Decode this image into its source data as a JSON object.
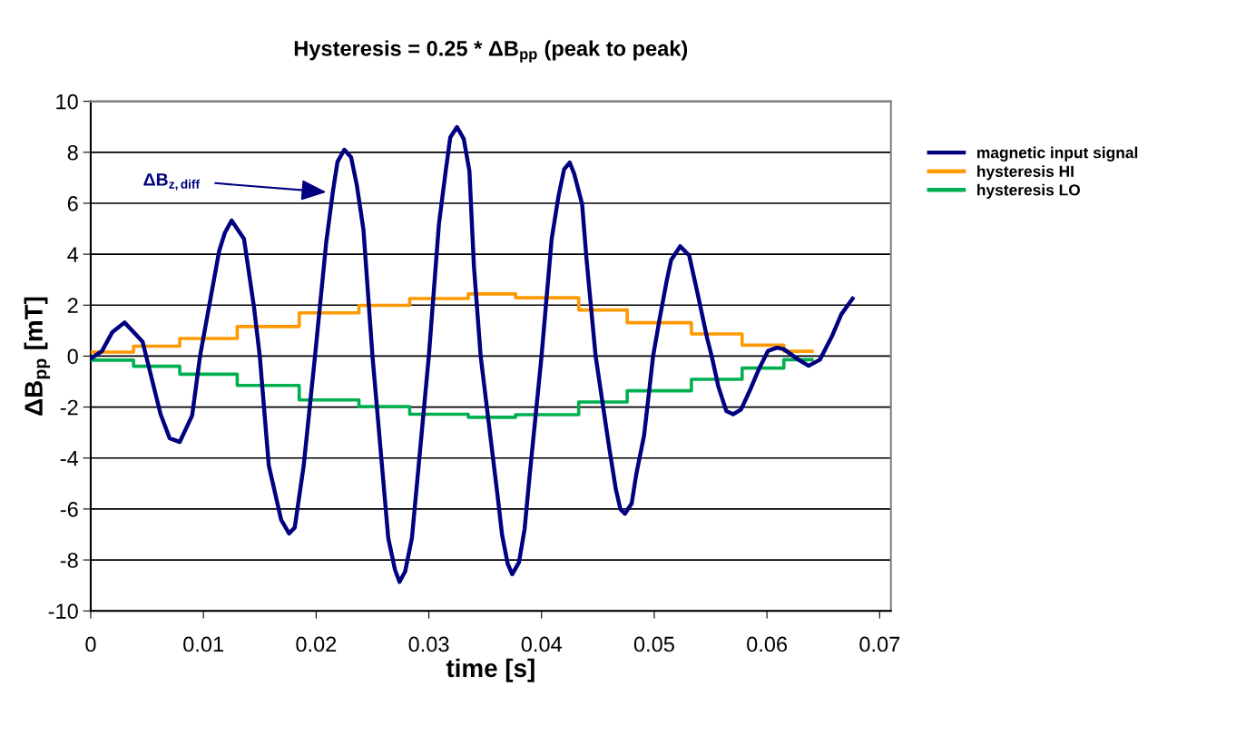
{
  "chart_data": {
    "type": "line",
    "title": "Hysteresis = 0.25 * ΔB$_{pp}$ (peak to peak)",
    "xlabel": "time [s]",
    "ylabel": "ΔB$_{pp}$ [mT]",
    "xlim": [
      0,
      0.071
    ],
    "xticks": [
      0,
      0.01,
      0.02,
      0.03,
      0.04,
      0.05,
      0.06,
      0.07
    ],
    "ylim": [
      -10,
      10
    ],
    "yticks": [
      -10,
      -8,
      -6,
      -4,
      -2,
      0,
      2,
      4,
      6,
      8,
      10
    ],
    "grid": "y",
    "legend": "right",
    "line_style": "solid",
    "marker": "none",
    "annotations": [
      {
        "text": "ΔB$_{z,diff}$",
        "x": 0.0209,
        "y": 6.44
      }
    ],
    "series": [
      {
        "name": "magnetic input signal",
        "color": "#000080",
        "x": [
          0,
          0.001,
          0.0019,
          0.003,
          0.0046,
          0.0062,
          0.007,
          0.0079,
          0.009,
          0.0097,
          0.0114,
          0.0119,
          0.0125,
          0.0136,
          0.0145,
          0.015,
          0.0158,
          0.0169,
          0.0176,
          0.0181,
          0.0189,
          0.0199,
          0.0209,
          0.0215,
          0.0219,
          0.0225,
          0.0231,
          0.0236,
          0.0242,
          0.025,
          0.0264,
          0.027,
          0.0274,
          0.0279,
          0.0285,
          0.03,
          0.0309,
          0.0315,
          0.0319,
          0.0325,
          0.0331,
          0.0336,
          0.034,
          0.0346,
          0.0361,
          0.0365,
          0.037,
          0.0374,
          0.038,
          0.0385,
          0.0389,
          0.04,
          0.0409,
          0.0415,
          0.042,
          0.0425,
          0.0429,
          0.0436,
          0.044,
          0.0448,
          0.046,
          0.0466,
          0.047,
          0.0474,
          0.048,
          0.0484,
          0.0491,
          0.0499,
          0.0505,
          0.0511,
          0.0515,
          0.0523,
          0.0531,
          0.0539,
          0.0547,
          0.0551,
          0.0557,
          0.0564,
          0.057,
          0.0577,
          0.0585,
          0.0593,
          0.0601,
          0.0609,
          0.0615,
          0.0628,
          0.0637,
          0.0647,
          0.0658,
          0.0666,
          0.0676
        ],
        "values": [
          -0.1,
          0.2,
          0.93,
          1.32,
          0.57,
          -2.28,
          -3.22,
          -3.37,
          -2.33,
          0,
          4.13,
          4.84,
          5.32,
          4.6,
          1.88,
          0,
          -4.29,
          -6.43,
          -6.96,
          -6.73,
          -4.29,
          0,
          4.48,
          6.5,
          7.63,
          8.1,
          7.81,
          6.74,
          4.96,
          0,
          -7.14,
          -8.39,
          -8.86,
          -8.45,
          -7.14,
          0,
          5.2,
          7.27,
          8.58,
          8.99,
          8.52,
          7.27,
          3.54,
          0,
          -5.48,
          -7.02,
          -8.15,
          -8.56,
          -8.09,
          -6.78,
          -4.89,
          0,
          4.6,
          6.26,
          7.33,
          7.6,
          7.15,
          5.97,
          3.77,
          0,
          -3.58,
          -5.24,
          -6.01,
          -6.19,
          -5.78,
          -4.65,
          -3.11,
          0,
          1.52,
          2.94,
          3.77,
          4.31,
          3.95,
          2.35,
          0.69,
          0,
          -1.21,
          -2.16,
          -2.28,
          -2.1,
          -1.33,
          -0.5,
          0.21,
          0.33,
          0.27,
          -0.14,
          -0.38,
          -0.14,
          0.81,
          1.64,
          2.26
        ]
      },
      {
        "name": "hysteresis HI",
        "color": "#ff9900",
        "type": "step",
        "x": [
          0,
          0.0038,
          0.0079,
          0.013,
          0.0185,
          0.0238,
          0.0283,
          0.0335,
          0.0377,
          0.0433,
          0.0476,
          0.0533,
          0.0578,
          0.0615,
          0.064
        ],
        "values": [
          0.16,
          0.39,
          0.69,
          1.16,
          1.7,
          1.99,
          2.26,
          2.44,
          2.29,
          1.81,
          1.31,
          0.87,
          0.43,
          0.19,
          0.19
        ]
      },
      {
        "name": "hysteresis LO",
        "color": "#00b050",
        "type": "step",
        "x": [
          0,
          0.0038,
          0.0079,
          0.013,
          0.0185,
          0.0238,
          0.0283,
          0.0335,
          0.0377,
          0.0433,
          0.0476,
          0.0533,
          0.0578,
          0.0615,
          0.064
        ],
        "values": [
          -0.16,
          -0.4,
          -0.71,
          -1.15,
          -1.72,
          -1.98,
          -2.28,
          -2.4,
          -2.3,
          -1.8,
          -1.36,
          -0.91,
          -0.47,
          -0.14,
          -0.14
        ]
      }
    ]
  }
}
